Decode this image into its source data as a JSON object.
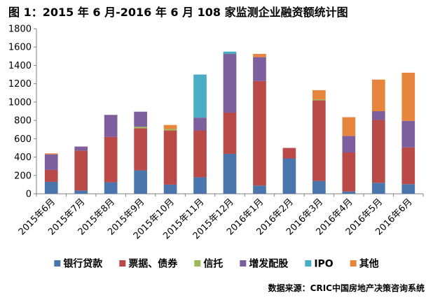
{
  "chart_data": {
    "type": "bar",
    "stacked": true,
    "title": "图 1：2015 年 6 月-2016 年 6 月 108 家监测企业融资额统计图",
    "categories": [
      "2015年6月",
      "2015年7月",
      "2015年8月",
      "2015年9月",
      "2015年10月",
      "2015年11月",
      "2015年12月",
      "2016年1月",
      "2016年2月",
      "2016年3月",
      "2016年4月",
      "2016年5月",
      "2016年6月"
    ],
    "series": [
      {
        "name": "银行贷款",
        "color": "#4A76AD",
        "values": [
          130,
          35,
          125,
          255,
          100,
          180,
          435,
          90,
          385,
          140,
          25,
          120,
          105
        ]
      },
      {
        "name": "票据、债券",
        "color": "#B94A48",
        "values": [
          130,
          435,
          495,
          460,
          590,
          510,
          450,
          1140,
          115,
          880,
          425,
          685,
          400
        ]
      },
      {
        "name": "信托",
        "color": "#9BBB59",
        "values": [
          0,
          0,
          0,
          15,
          15,
          0,
          0,
          0,
          0,
          10,
          0,
          0,
          0
        ]
      },
      {
        "name": "增发配股",
        "color": "#7E5F9E",
        "values": [
          170,
          45,
          240,
          165,
          0,
          140,
          640,
          260,
          0,
          0,
          180,
          95,
          290
        ]
      },
      {
        "name": "IPO",
        "color": "#4BACC6",
        "values": [
          0,
          0,
          0,
          0,
          0,
          470,
          25,
          0,
          0,
          0,
          0,
          0,
          0
        ]
      },
      {
        "name": "其他",
        "color": "#E8853C",
        "values": [
          10,
          0,
          0,
          0,
          45,
          0,
          0,
          35,
          0,
          100,
          205,
          345,
          525
        ]
      }
    ],
    "ylim": [
      0,
      1800
    ],
    "yticks": [
      "0",
      "200",
      "400",
      "600",
      "800",
      "1000",
      "1200",
      "1400",
      "1600",
      "1800"
    ],
    "grid": false,
    "legend_position": "bottom",
    "source": "数据来源：CRIC中国房地产决策咨询系统"
  }
}
